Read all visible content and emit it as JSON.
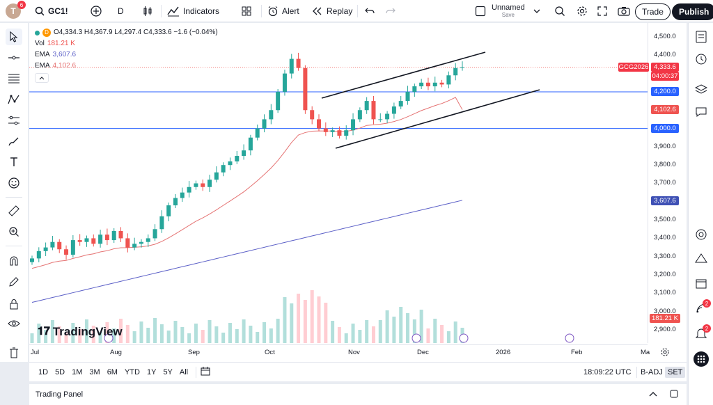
{
  "topbar": {
    "avatar_letter": "T",
    "avatar_badge": "6",
    "symbol": "GC1!",
    "interval": "D",
    "indicators_label": "Indicators",
    "alert_label": "Alert",
    "replay_label": "Replay",
    "layout_name": "Unnamed",
    "layout_save": "Save",
    "trade_label": "Trade",
    "publish_label": "Publish"
  },
  "legend": {
    "ohlc": "O4,334.3 H4,367.9 L4,297.4 C4,333.6 −1.6 (−0.04%)",
    "vol_label": "Vol",
    "vol_value": "181.21 K",
    "ema1_label": "EMA",
    "ema1_value": "3,607.6",
    "ema2_label": "EMA",
    "ema2_value": "4,102.6",
    "flag": "D"
  },
  "price_axis": {
    "ticks": [
      "4,500.0",
      "4,400.0",
      "4,300.0",
      "4,200.0",
      "4,100.0",
      "4,000.0",
      "3,900.0",
      "3,800.0",
      "3,700.0",
      "3,600.0",
      "3,500.0",
      "3,400.0",
      "3,300.0",
      "3,200.0",
      "3,100.0",
      "3,000.0",
      "2,900.0"
    ],
    "symbol_tag": "GCG2026",
    "last_price": "4,333.6",
    "countdown": "04:00:37",
    "level_4200": "4,200.0",
    "ema_fast": "4,102.6",
    "level_4000": "4,000.0",
    "ema_slow": "3,607.6",
    "volume": "181.21 K"
  },
  "time_axis": {
    "labels": [
      "Jul",
      "Aug",
      "Sep",
      "Oct",
      "Nov",
      "Dec",
      "2026",
      "Feb",
      "Ma"
    ]
  },
  "watermark": "TradingView",
  "bottombar": {
    "ranges": [
      "1D",
      "5D",
      "1M",
      "3M",
      "6M",
      "YTD",
      "1Y",
      "5Y",
      "All"
    ],
    "clock": "18:09:22 UTC",
    "adj": "B-ADJ",
    "session": "SET"
  },
  "panel": {
    "label": "Trading Panel"
  },
  "right_toolbar": {
    "ideas_badge": "2",
    "notif_badge": "2"
  },
  "colors": {
    "up": "#26a69a",
    "down": "#ef5350",
    "ema_fast": "#e57373",
    "ema_slow": "#5b5fc7",
    "hline": "#2962ff"
  },
  "chart_data": {
    "type": "candlestick",
    "symbol": "GC1!",
    "interval": "D",
    "last": {
      "open": 4334.3,
      "high": 4367.9,
      "low": 4297.4,
      "close": 4333.6,
      "change": -1.6,
      "change_pct": -0.04
    },
    "x": [
      "Jul",
      "Aug",
      "Sep",
      "Oct",
      "Nov",
      "Dec"
    ],
    "close_path": [
      3290,
      3330,
      3350,
      3380,
      3340,
      3310,
      3390,
      3380,
      3400,
      3370,
      3420,
      3390,
      3440,
      3400,
      3350,
      3370,
      3380,
      3400,
      3450,
      3520,
      3580,
      3620,
      3650,
      3680,
      3700,
      3680,
      3720,
      3760,
      3800,
      3820,
      3850,
      3880,
      3950,
      4000,
      4050,
      4100,
      4200,
      4300,
      4380,
      4330,
      4100,
      4050,
      4000,
      3980,
      3990,
      3960,
      3990,
      4050,
      4100,
      4150,
      4050,
      4050,
      4080,
      4120,
      4150,
      4200,
      4230,
      4250,
      4230,
      4250,
      4240,
      4290,
      4330,
      4333.6
    ],
    "ema_fast_end": 4102.6,
    "ema_slow_end": 3607.6,
    "horizontal_levels": [
      4200,
      4000
    ],
    "ylim": [
      2860,
      4540
    ]
  }
}
